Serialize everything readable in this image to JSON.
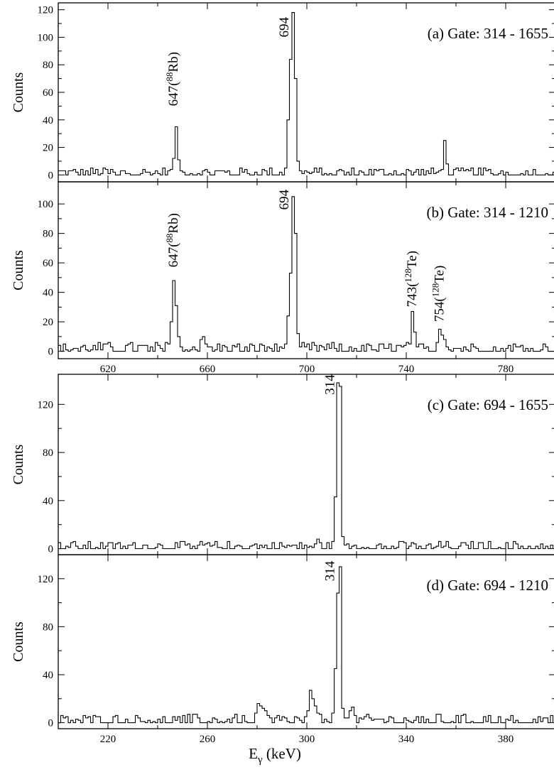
{
  "chart_data": [
    {
      "type": "histogram",
      "panel_label": "(a) Gate: 314 - 1655",
      "ylabel": "Counts",
      "xlim": [
        600,
        800
      ],
      "ylim": [
        -5,
        125
      ],
      "yticks": [
        0,
        20,
        40,
        60,
        80,
        100,
        120
      ],
      "xticks": [
        620,
        660,
        700,
        740,
        780
      ],
      "show_xtick_labels": false,
      "baseline": 1.5,
      "noise": 4,
      "peaks": [
        {
          "x": 647,
          "counts": [
            4,
            12,
            35,
            11,
            3
          ]
        },
        {
          "x": 694,
          "counts": [
            5,
            40,
            84,
            118,
            70,
            10,
            3
          ]
        },
        {
          "x": 755,
          "counts": [
            4,
            25,
            8
          ]
        }
      ],
      "annotations": [
        {
          "text": "647(",
          "sup": "88",
          "tail": "Rb)",
          "x": 648,
          "y": 50
        },
        {
          "text": "694",
          "x": 692.5,
          "y": 100
        }
      ]
    },
    {
      "type": "histogram",
      "panel_label": "(b) Gate: 314 - 1210",
      "ylabel": "Counts",
      "xlim": [
        600,
        800
      ],
      "ylim": [
        -5,
        115
      ],
      "yticks": [
        0,
        20,
        40,
        60,
        80,
        100
      ],
      "xticks": [
        620,
        660,
        700,
        740,
        780
      ],
      "show_xtick_labels": true,
      "baseline": 2,
      "noise": 4,
      "peaks": [
        {
          "x": 647,
          "counts": [
            5,
            20,
            48,
            31,
            10,
            3
          ]
        },
        {
          "x": 658,
          "counts": [
            8,
            10,
            5
          ]
        },
        {
          "x": 694,
          "counts": [
            5,
            24,
            53,
            105,
            80,
            12,
            3
          ]
        },
        {
          "x": 743,
          "counts": [
            5,
            27,
            13,
            3
          ]
        },
        {
          "x": 754,
          "counts": [
            6,
            15,
            11,
            8,
            3
          ]
        }
      ],
      "annotations": [
        {
          "text": "647(",
          "sup": "88",
          "tail": "Rb)",
          "x": 648,
          "y": 57
        },
        {
          "text": "694",
          "x": 692.5,
          "y": 96
        },
        {
          "text": "743(",
          "sup": "128",
          "tail": "Te)",
          "x": 744,
          "y": 30
        },
        {
          "text": "754(",
          "sup": "128",
          "tail": "Te)",
          "x": 755,
          "y": 20
        }
      ]
    },
    {
      "type": "histogram",
      "panel_label": "(c) Gate: 694 - 1655",
      "ylabel": "Counts",
      "xlim": [
        200,
        400
      ],
      "ylim": [
        -5,
        145
      ],
      "yticks": [
        0,
        40,
        80,
        120
      ],
      "xticks": [
        220,
        260,
        300,
        340,
        380
      ],
      "show_xtick_labels": false,
      "baseline": 2,
      "noise": 4,
      "peaks": [
        {
          "x": 304,
          "counts": [
            4,
            8,
            5
          ]
        },
        {
          "x": 313,
          "counts": [
            6,
            43,
            138,
            135,
            10,
            3
          ]
        }
      ],
      "annotations": [
        {
          "text": "314",
          "x": 311,
          "y": 128
        }
      ]
    },
    {
      "type": "histogram",
      "panel_label": "(d) Gate: 694 - 1210",
      "ylabel": "Counts",
      "xlim": [
        200,
        400
      ],
      "ylim": [
        -5,
        140
      ],
      "yticks": [
        0,
        40,
        80,
        120
      ],
      "xticks": [
        220,
        260,
        300,
        340,
        380
      ],
      "show_xtick_labels": true,
      "xlabel": "E",
      "xlabel_sub": "γ",
      "xlabel_tail": " (keV)",
      "baseline": 2,
      "noise": 5,
      "peaks": [
        {
          "x": 282,
          "counts": [
            8,
            16,
            14,
            12,
            10,
            6
          ]
        },
        {
          "x": 302,
          "counts": [
            10,
            27,
            20,
            14,
            8
          ]
        },
        {
          "x": 313,
          "counts": [
            8,
            45,
            108,
            130,
            12,
            4
          ]
        },
        {
          "x": 318,
          "counts": [
            10,
            13,
            6
          ]
        }
      ],
      "annotations": [
        {
          "text": "314",
          "x": 311,
          "y": 118
        }
      ]
    }
  ]
}
